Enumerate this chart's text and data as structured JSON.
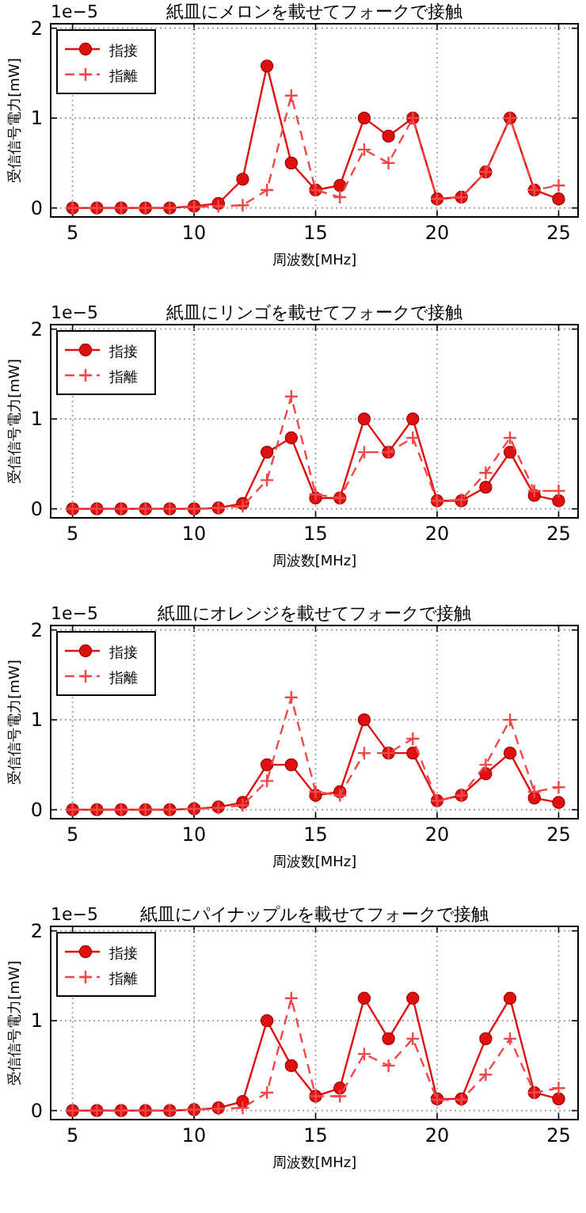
{
  "chart_data": [
    {
      "type": "line",
      "title": "紙皿にメロンを載せてフォークで接触",
      "xlabel": "周波数[MHz]",
      "ylabel": "受信信号電力[mW]",
      "annotations": [
        "1e−5"
      ],
      "x": [
        5,
        6,
        7,
        8,
        9,
        10,
        11,
        12,
        13,
        14,
        15,
        16,
        17,
        18,
        19,
        20,
        21,
        22,
        23,
        24,
        25
      ],
      "xlim": [
        4.1,
        25.8
      ],
      "ylim": [
        -0.1,
        2.05
      ],
      "xticks": [
        5,
        10,
        15,
        20,
        25
      ],
      "yticks": [
        0,
        1,
        2
      ],
      "grid": true,
      "legend": "top left",
      "series": [
        {
          "name": "指接",
          "color": "#e01010",
          "marker": "circle",
          "line_style": "solid",
          "values": [
            0,
            0,
            0,
            0,
            0,
            0.02,
            0.05,
            0.32,
            1.58,
            0.5,
            0.2,
            0.25,
            1.0,
            0.8,
            1.0,
            0.1,
            0.12,
            0.4,
            1.0,
            0.2,
            0.1
          ]
        },
        {
          "name": "指離",
          "color": "#f04848",
          "marker": "cross",
          "line_style": "dashed",
          "values": [
            0,
            0,
            0,
            0,
            0,
            0.01,
            0.02,
            0.03,
            0.2,
            1.25,
            0.2,
            0.12,
            0.65,
            0.5,
            1.0,
            0.1,
            0.12,
            0.4,
            1.0,
            0.2,
            0.25
          ]
        }
      ]
    },
    {
      "type": "line",
      "title": "紙皿にリンゴを載せてフォークで接触",
      "xlabel": "周波数[MHz]",
      "ylabel": "受信信号電力[mW]",
      "annotations": [
        "1e−5"
      ],
      "x": [
        5,
        6,
        7,
        8,
        9,
        10,
        11,
        12,
        13,
        14,
        15,
        16,
        17,
        18,
        19,
        20,
        21,
        22,
        23,
        24,
        25
      ],
      "xlim": [
        4.1,
        25.8
      ],
      "ylim": [
        -0.1,
        2.05
      ],
      "xticks": [
        5,
        10,
        15,
        20,
        25
      ],
      "yticks": [
        0,
        1,
        2
      ],
      "grid": true,
      "legend": "top left",
      "series": [
        {
          "name": "指接",
          "color": "#e01010",
          "marker": "circle",
          "line_style": "solid",
          "values": [
            0,
            0,
            0,
            0,
            0,
            0,
            0.01,
            0.06,
            0.63,
            0.79,
            0.12,
            0.12,
            1.0,
            0.63,
            1.0,
            0.09,
            0.09,
            0.24,
            0.63,
            0.15,
            0.09
          ]
        },
        {
          "name": "指離",
          "color": "#f04848",
          "marker": "cross",
          "line_style": "dashed",
          "values": [
            0,
            0,
            0,
            0,
            0,
            0,
            0.01,
            0.03,
            0.32,
            1.25,
            0.16,
            0.12,
            0.63,
            0.63,
            0.79,
            0.09,
            0.1,
            0.4,
            0.79,
            0.2,
            0.2
          ]
        }
      ]
    },
    {
      "type": "line",
      "title": "紙皿にオレンジを載せてフォークで接触",
      "xlabel": "周波数[MHz]",
      "ylabel": "受信信号電力[mW]",
      "annotations": [
        "1e−5"
      ],
      "x": [
        5,
        6,
        7,
        8,
        9,
        10,
        11,
        12,
        13,
        14,
        15,
        16,
        17,
        18,
        19,
        20,
        21,
        22,
        23,
        24,
        25
      ],
      "xlim": [
        4.1,
        25.8
      ],
      "ylim": [
        -0.1,
        2.05
      ],
      "xticks": [
        5,
        10,
        15,
        20,
        25
      ],
      "yticks": [
        0,
        1,
        2
      ],
      "grid": true,
      "legend": "top left",
      "series": [
        {
          "name": "指接",
          "color": "#e01010",
          "marker": "circle",
          "line_style": "solid",
          "values": [
            0,
            0,
            0,
            0,
            0,
            0.01,
            0.03,
            0.08,
            0.5,
            0.5,
            0.16,
            0.2,
            1.0,
            0.63,
            0.63,
            0.1,
            0.16,
            0.4,
            0.63,
            0.13,
            0.08
          ]
        },
        {
          "name": "指離",
          "color": "#f04848",
          "marker": "cross",
          "line_style": "dashed",
          "values": [
            0,
            0,
            0,
            0,
            0,
            0.01,
            0.02,
            0.05,
            0.32,
            1.25,
            0.2,
            0.16,
            0.63,
            0.63,
            0.79,
            0.1,
            0.16,
            0.5,
            1.0,
            0.2,
            0.25
          ]
        }
      ]
    },
    {
      "type": "line",
      "title": "紙皿にパイナップルを載せてフォークで接触",
      "xlabel": "周波数[MHz]",
      "ylabel": "受信信号電力[mW]",
      "annotations": [
        "1e−5"
      ],
      "x": [
        5,
        6,
        7,
        8,
        9,
        10,
        11,
        12,
        13,
        14,
        15,
        16,
        17,
        18,
        19,
        20,
        21,
        22,
        23,
        24,
        25
      ],
      "xlim": [
        4.1,
        25.8
      ],
      "ylim": [
        -0.1,
        2.05
      ],
      "xticks": [
        5,
        10,
        15,
        20,
        25
      ],
      "yticks": [
        0,
        1,
        2
      ],
      "grid": true,
      "legend": "top left",
      "series": [
        {
          "name": "指接",
          "color": "#e01010",
          "marker": "circle",
          "line_style": "solid",
          "values": [
            0,
            0,
            0,
            0,
            0,
            0.01,
            0.03,
            0.1,
            1.0,
            0.5,
            0.16,
            0.25,
            1.25,
            0.8,
            1.25,
            0.13,
            0.13,
            0.8,
            1.25,
            0.2,
            0.13
          ]
        },
        {
          "name": "指離",
          "color": "#f04848",
          "marker": "cross",
          "line_style": "dashed",
          "values": [
            0,
            0,
            0,
            0,
            0,
            0.01,
            0.02,
            0.03,
            0.2,
            1.25,
            0.16,
            0.16,
            0.63,
            0.5,
            0.8,
            0.12,
            0.12,
            0.4,
            0.8,
            0.2,
            0.25
          ]
        }
      ]
    }
  ]
}
